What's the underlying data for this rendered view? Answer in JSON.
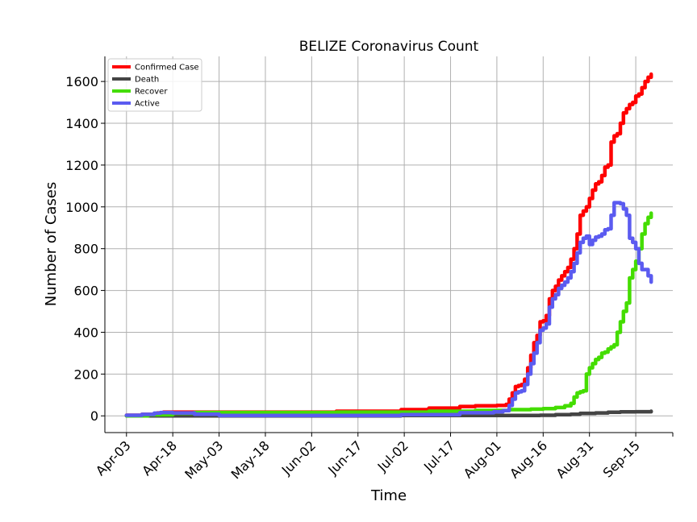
{
  "chart_data": {
    "type": "line",
    "title": "BELIZE Coronavirus Count",
    "xlabel": "Time",
    "ylabel": "Number of Cases",
    "x_ticks": [
      "Apr-03",
      "Apr-18",
      "May-03",
      "May-18",
      "Jun-02",
      "Jun-17",
      "Jul-02",
      "Jul-17",
      "Aug-01",
      "Aug-16",
      "Aug-31",
      "Sep-15"
    ],
    "y_ticks": [
      0,
      200,
      400,
      600,
      800,
      1000,
      1200,
      1400,
      1600
    ],
    "ylim": [
      -80,
      1720
    ],
    "xlim": [
      "2020-03-27",
      "2020-09-27"
    ],
    "grid": true,
    "legend_position": "top-left",
    "series": [
      {
        "name": "Confirmed Case",
        "color": "#ff0000",
        "points": [
          [
            "2020-04-03",
            3
          ],
          [
            "2020-04-08",
            7
          ],
          [
            "2020-04-13",
            14
          ],
          [
            "2020-04-15",
            18
          ],
          [
            "2020-04-18",
            18
          ],
          [
            "2020-05-20",
            18
          ],
          [
            "2020-06-10",
            22
          ],
          [
            "2020-07-01",
            30
          ],
          [
            "2020-07-10",
            37
          ],
          [
            "2020-07-20",
            45
          ],
          [
            "2020-07-25",
            48
          ],
          [
            "2020-08-01",
            50
          ],
          [
            "2020-08-04",
            55
          ],
          [
            "2020-08-05",
            80
          ],
          [
            "2020-08-06",
            110
          ],
          [
            "2020-08-07",
            140
          ],
          [
            "2020-08-08",
            145
          ],
          [
            "2020-08-09",
            150
          ],
          [
            "2020-08-10",
            175
          ],
          [
            "2020-08-11",
            230
          ],
          [
            "2020-08-12",
            290
          ],
          [
            "2020-08-13",
            350
          ],
          [
            "2020-08-14",
            385
          ],
          [
            "2020-08-15",
            450
          ],
          [
            "2020-08-16",
            455
          ],
          [
            "2020-08-17",
            480
          ],
          [
            "2020-08-18",
            560
          ],
          [
            "2020-08-19",
            600
          ],
          [
            "2020-08-20",
            620
          ],
          [
            "2020-08-21",
            650
          ],
          [
            "2020-08-22",
            670
          ],
          [
            "2020-08-23",
            690
          ],
          [
            "2020-08-24",
            710
          ],
          [
            "2020-08-25",
            750
          ],
          [
            "2020-08-26",
            800
          ],
          [
            "2020-08-27",
            870
          ],
          [
            "2020-08-28",
            960
          ],
          [
            "2020-08-29",
            980
          ],
          [
            "2020-08-30",
            1000
          ],
          [
            "2020-08-31",
            1040
          ],
          [
            "2020-09-01",
            1080
          ],
          [
            "2020-09-02",
            1110
          ],
          [
            "2020-09-03",
            1120
          ],
          [
            "2020-09-04",
            1150
          ],
          [
            "2020-09-05",
            1190
          ],
          [
            "2020-09-06",
            1200
          ],
          [
            "2020-09-07",
            1310
          ],
          [
            "2020-09-08",
            1340
          ],
          [
            "2020-09-09",
            1350
          ],
          [
            "2020-09-10",
            1400
          ],
          [
            "2020-09-11",
            1450
          ],
          [
            "2020-09-12",
            1470
          ],
          [
            "2020-09-13",
            1490
          ],
          [
            "2020-09-14",
            1500
          ],
          [
            "2020-09-15",
            1530
          ],
          [
            "2020-09-16",
            1540
          ],
          [
            "2020-09-17",
            1570
          ],
          [
            "2020-09-18",
            1600
          ],
          [
            "2020-09-19",
            1620
          ],
          [
            "2020-09-20",
            1635
          ]
        ]
      },
      {
        "name": "Death",
        "color": "#444444",
        "points": [
          [
            "2020-04-03",
            0
          ],
          [
            "2020-07-01",
            2
          ],
          [
            "2020-08-05",
            2
          ],
          [
            "2020-08-15",
            3
          ],
          [
            "2020-08-20",
            6
          ],
          [
            "2020-08-25",
            8
          ],
          [
            "2020-08-28",
            12
          ],
          [
            "2020-09-02",
            14
          ],
          [
            "2020-09-06",
            17
          ],
          [
            "2020-09-10",
            19
          ],
          [
            "2020-09-15",
            20
          ],
          [
            "2020-09-20",
            22
          ]
        ]
      },
      {
        "name": "Recover",
        "color": "#44dd00",
        "points": [
          [
            "2020-04-03",
            0
          ],
          [
            "2020-04-10",
            5
          ],
          [
            "2020-04-18",
            12
          ],
          [
            "2020-04-25",
            16
          ],
          [
            "2020-05-03",
            16
          ],
          [
            "2020-06-10",
            18
          ],
          [
            "2020-07-10",
            22
          ],
          [
            "2020-07-25",
            26
          ],
          [
            "2020-08-05",
            30
          ],
          [
            "2020-08-12",
            32
          ],
          [
            "2020-08-16",
            35
          ],
          [
            "2020-08-20",
            40
          ],
          [
            "2020-08-23",
            48
          ],
          [
            "2020-08-25",
            60
          ],
          [
            "2020-08-26",
            90
          ],
          [
            "2020-08-27",
            110
          ],
          [
            "2020-08-28",
            115
          ],
          [
            "2020-08-29",
            120
          ],
          [
            "2020-08-30",
            200
          ],
          [
            "2020-08-31",
            230
          ],
          [
            "2020-09-01",
            250
          ],
          [
            "2020-09-02",
            270
          ],
          [
            "2020-09-03",
            280
          ],
          [
            "2020-09-04",
            300
          ],
          [
            "2020-09-05",
            305
          ],
          [
            "2020-09-06",
            320
          ],
          [
            "2020-09-07",
            330
          ],
          [
            "2020-09-08",
            340
          ],
          [
            "2020-09-09",
            400
          ],
          [
            "2020-09-10",
            450
          ],
          [
            "2020-09-11",
            500
          ],
          [
            "2020-09-12",
            540
          ],
          [
            "2020-09-13",
            660
          ],
          [
            "2020-09-14",
            700
          ],
          [
            "2020-09-15",
            740
          ],
          [
            "2020-09-16",
            800
          ],
          [
            "2020-09-17",
            870
          ],
          [
            "2020-09-18",
            920
          ],
          [
            "2020-09-19",
            950
          ],
          [
            "2020-09-20",
            970
          ]
        ]
      },
      {
        "name": "Active",
        "color": "#5b5bf0",
        "points": [
          [
            "2020-04-03",
            3
          ],
          [
            "2020-04-08",
            7
          ],
          [
            "2020-04-12",
            13
          ],
          [
            "2020-04-14",
            16
          ],
          [
            "2020-04-18",
            14
          ],
          [
            "2020-04-25",
            8
          ],
          [
            "2020-05-03",
            2
          ],
          [
            "2020-06-01",
            2
          ],
          [
            "2020-07-01",
            6
          ],
          [
            "2020-07-20",
            15
          ],
          [
            "2020-07-31",
            20
          ],
          [
            "2020-08-03",
            25
          ],
          [
            "2020-08-05",
            50
          ],
          [
            "2020-08-06",
            80
          ],
          [
            "2020-08-07",
            110
          ],
          [
            "2020-08-08",
            115
          ],
          [
            "2020-08-09",
            120
          ],
          [
            "2020-08-10",
            150
          ],
          [
            "2020-08-11",
            200
          ],
          [
            "2020-08-12",
            250
          ],
          [
            "2020-08-13",
            300
          ],
          [
            "2020-08-14",
            350
          ],
          [
            "2020-08-15",
            410
          ],
          [
            "2020-08-16",
            420
          ],
          [
            "2020-08-17",
            440
          ],
          [
            "2020-08-18",
            520
          ],
          [
            "2020-08-19",
            560
          ],
          [
            "2020-08-20",
            580
          ],
          [
            "2020-08-21",
            610
          ],
          [
            "2020-08-22",
            625
          ],
          [
            "2020-08-23",
            640
          ],
          [
            "2020-08-24",
            660
          ],
          [
            "2020-08-25",
            690
          ],
          [
            "2020-08-26",
            730
          ],
          [
            "2020-08-27",
            780
          ],
          [
            "2020-08-28",
            830
          ],
          [
            "2020-08-29",
            850
          ],
          [
            "2020-08-30",
            860
          ],
          [
            "2020-08-31",
            820
          ],
          [
            "2020-09-01",
            840
          ],
          [
            "2020-09-02",
            855
          ],
          [
            "2020-09-03",
            860
          ],
          [
            "2020-09-04",
            870
          ],
          [
            "2020-09-05",
            890
          ],
          [
            "2020-09-06",
            895
          ],
          [
            "2020-09-07",
            960
          ],
          [
            "2020-09-08",
            1020
          ],
          [
            "2020-09-09",
            1020
          ],
          [
            "2020-09-10",
            1015
          ],
          [
            "2020-09-11",
            990
          ],
          [
            "2020-09-12",
            960
          ],
          [
            "2020-09-13",
            850
          ],
          [
            "2020-09-14",
            830
          ],
          [
            "2020-09-15",
            800
          ],
          [
            "2020-09-16",
            730
          ],
          [
            "2020-09-17",
            700
          ],
          [
            "2020-09-18",
            700
          ],
          [
            "2020-09-19",
            670
          ],
          [
            "2020-09-20",
            640
          ]
        ]
      }
    ]
  }
}
